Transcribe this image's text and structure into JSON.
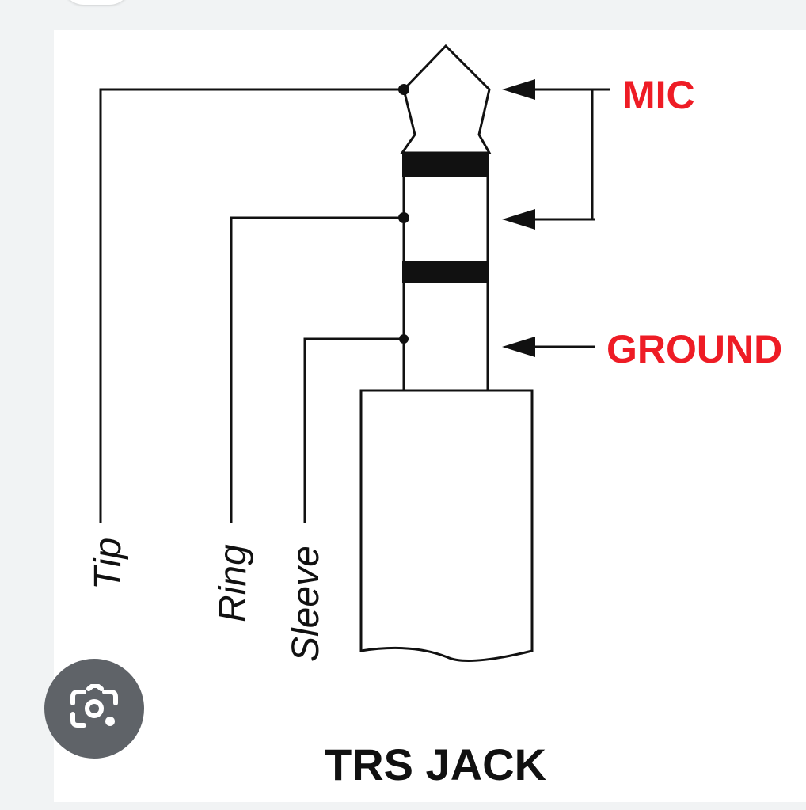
{
  "diagram": {
    "title": "TRS JACK",
    "labels": {
      "tip": "Tip",
      "ring": "Ring",
      "sleeve": "Sleeve",
      "mic": "MIC",
      "ground": "GROUND"
    },
    "colors": {
      "line": "#111111",
      "accent": "#ee1c25"
    }
  },
  "ui": {
    "lens_icon": "google-lens-icon",
    "lens_button_color": "#5f6368"
  }
}
